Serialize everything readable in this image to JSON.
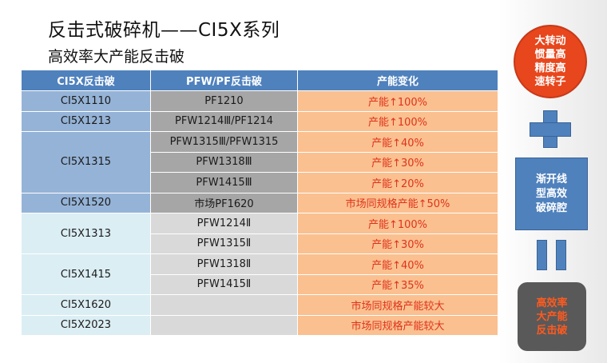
{
  "slide": {
    "title": "反击式破碎机——CI5X系列",
    "subtitle": "高效率大产能反击破"
  },
  "table": {
    "headers": [
      "CI5X反击破",
      "PFW/PF反击破",
      "产能变化"
    ],
    "rows": [
      {
        "ci5x": "CI5X1110",
        "pf": "PF1210",
        "change": "产能↑100%"
      },
      {
        "ci5x": "CI5X1213",
        "pf": "PFW1214Ⅲ/PF1214",
        "change": "产能↑100%"
      },
      {
        "ci5x": "CI5X1315",
        "pf": "PFW1315Ⅲ/PFW1315",
        "change": "产能↑40%"
      },
      {
        "ci5x": "",
        "pf": "PFW1318Ⅲ",
        "change": "产能↑30%"
      },
      {
        "ci5x": "",
        "pf": "PFW1415Ⅲ",
        "change": "产能↑20%"
      },
      {
        "ci5x": "CI5X1520",
        "pf": "市场PF1620",
        "change": "市场同规格产能↑50%"
      },
      {
        "ci5x": "CI5X1313",
        "pf": "PFW1214Ⅱ",
        "change": "产能↑100%"
      },
      {
        "ci5x": "",
        "pf": "PFW1315Ⅱ",
        "change": "产能↑30%"
      },
      {
        "ci5x": "CI5X1415",
        "pf": "PFW1318Ⅱ",
        "change": "产能↑40%"
      },
      {
        "ci5x": "",
        "pf": "PFW1415Ⅱ",
        "change": "产能↑35%"
      },
      {
        "ci5x": "CI5X1620",
        "pf": "",
        "change": "市场同规格产能较大"
      },
      {
        "ci5x": "CI5X2023",
        "pf": "",
        "change": "市场同规格产能较大"
      }
    ]
  },
  "side": {
    "circle_lines": [
      "大转动",
      "惯量高",
      "精度高",
      "速转子"
    ],
    "plus_icon": "plus-icon",
    "box_lines": [
      "渐开线",
      "型高效",
      "破碎腔"
    ],
    "equals_icon": "equals-icon",
    "result_lines": [
      "高效率",
      "大产能",
      "反击破"
    ]
  },
  "colors": {
    "header": "#4f81bd",
    "accent_red": "#e8461c",
    "change_bg": "#fac090",
    "result_bg": "#595959"
  }
}
